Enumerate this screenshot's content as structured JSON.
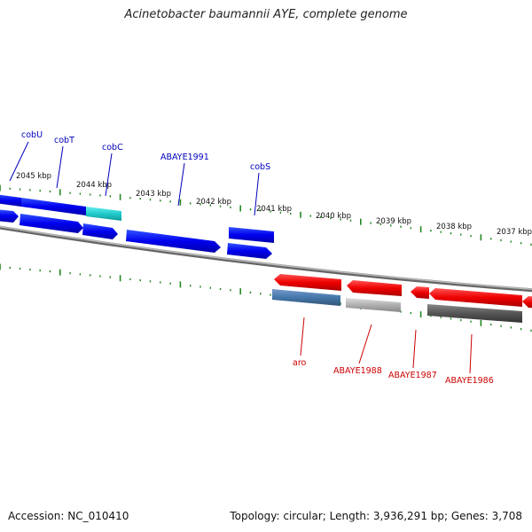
{
  "title": "Acinetobacter baumannii AYE, complete genome",
  "footer": {
    "accession": "Accession: NC_010410",
    "summary": "Topology: circular; Length: 3,936,291 bp; Genes: 3,708"
  },
  "colors": {
    "forward_cds": "#0000ee",
    "forward_highlight": "#22cccc",
    "reverse_cds": "#ee0000",
    "reverse_highlight": "#4477aa",
    "pseudo_light": "#b0b0b0",
    "pseudo_dark": "#555555",
    "ticks": "#228822",
    "backbone": "#888888",
    "forward_label": "#0000bb",
    "reverse_label": "#cc0000"
  },
  "scale": {
    "labels": [
      "2045 kbp",
      "2044 kbp",
      "2043 kbp",
      "2042 kbp",
      "2041 kbp",
      "2040 kbp",
      "2039 kbp",
      "2038 kbp",
      "2037 kbp"
    ]
  },
  "forward_genes": [
    {
      "label": "cobU"
    },
    {
      "label": "cobT"
    },
    {
      "label": "cobC"
    },
    {
      "label": "ABAYE1991"
    },
    {
      "label": "cobS"
    }
  ],
  "reverse_genes": [
    {
      "label": "aro"
    },
    {
      "label": "ABAYE1988"
    },
    {
      "label": "ABAYE1987"
    },
    {
      "label": "ABAYE1986"
    }
  ]
}
